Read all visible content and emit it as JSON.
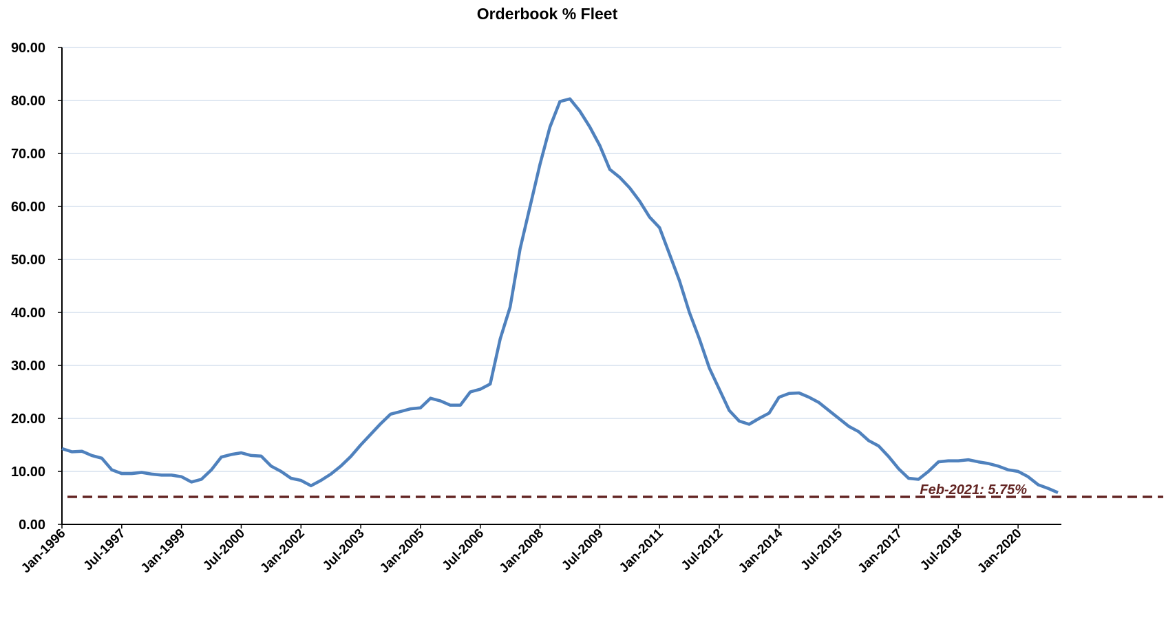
{
  "chart_data": {
    "type": "line",
    "title": "Orderbook % Fleet",
    "categories": [
      "Jan-1996",
      null,
      null,
      null,
      null,
      null,
      "Jul-1997",
      null,
      null,
      null,
      null,
      null,
      "Jan-1999",
      null,
      null,
      null,
      null,
      null,
      "Jul-2000",
      null,
      null,
      null,
      null,
      null,
      "Jan-2002",
      null,
      null,
      null,
      null,
      null,
      "Jul-2003",
      null,
      null,
      null,
      null,
      null,
      "Jan-2005",
      null,
      null,
      null,
      null,
      null,
      "Jul-2006",
      null,
      null,
      null,
      null,
      null,
      "Jan-2008",
      null,
      null,
      null,
      null,
      null,
      "Jul-2009",
      null,
      null,
      null,
      null,
      null,
      "Jan-2011",
      null,
      null,
      null,
      null,
      null,
      "Jul-2012",
      null,
      null,
      null,
      null,
      null,
      "Jan-2014",
      null,
      null,
      null,
      null,
      null,
      "Jul-2015",
      null,
      null,
      null,
      null,
      null,
      "Jan-2017",
      null,
      null,
      null,
      null,
      null,
      "Jul-2018",
      null,
      null,
      null,
      null,
      null,
      "Jan-2020",
      null,
      null,
      null,
      null
    ],
    "series": [
      {
        "name": "Orderbook % Fleet",
        "color": "#4f81bd",
        "values": [
          14.3,
          13.7,
          13.8,
          13.0,
          12.5,
          10.3,
          9.6,
          9.6,
          9.8,
          9.5,
          9.3,
          9.3,
          9.0,
          8.0,
          8.5,
          10.3,
          12.7,
          13.2,
          13.5,
          13.0,
          12.9,
          11.0,
          10.0,
          8.7,
          8.3,
          7.3,
          8.3,
          9.5,
          11.0,
          12.8,
          15.0,
          17.0,
          19.0,
          20.8,
          21.3,
          21.8,
          22.0,
          23.8,
          23.3,
          22.5,
          22.5,
          25.0,
          25.5,
          26.5,
          35.0,
          41.0,
          52.0,
          60.0,
          68.0,
          75.0,
          79.8,
          80.3,
          78.0,
          75.0,
          71.5,
          67.0,
          65.5,
          63.5,
          61.0,
          58.0,
          56.0,
          51.0,
          46.0,
          40.0,
          35.0,
          29.5,
          25.5,
          21.5,
          19.5,
          18.9,
          20.0,
          21.0,
          24.0,
          24.7,
          24.8,
          24.0,
          23.0,
          21.5,
          20.0,
          18.5,
          17.5,
          15.8,
          14.8,
          12.8,
          10.5,
          8.7,
          8.5,
          10.0,
          11.8,
          12.0,
          12.0,
          12.2,
          11.8,
          11.5,
          11.0,
          10.3,
          10.0,
          9.0,
          7.5,
          6.8,
          6.0
        ]
      }
    ],
    "reference_line": {
      "value": 5.2,
      "color": "#632523",
      "dashed": true
    },
    "annotation": "Feb-2021: 5.75%",
    "ylim": [
      0,
      90
    ],
    "yticks": [
      {
        "value": 0,
        "label": "0.00"
      },
      {
        "value": 10,
        "label": "10.00"
      },
      {
        "value": 20,
        "label": "20.00"
      },
      {
        "value": 30,
        "label": "30.00"
      },
      {
        "value": 40,
        "label": "40.00"
      },
      {
        "value": 50,
        "label": "50.00"
      },
      {
        "value": 60,
        "label": "60.00"
      },
      {
        "value": 70,
        "label": "70.00"
      },
      {
        "value": 80,
        "label": "80.00"
      },
      {
        "value": 90,
        "label": "90.00"
      }
    ],
    "grid": true
  }
}
